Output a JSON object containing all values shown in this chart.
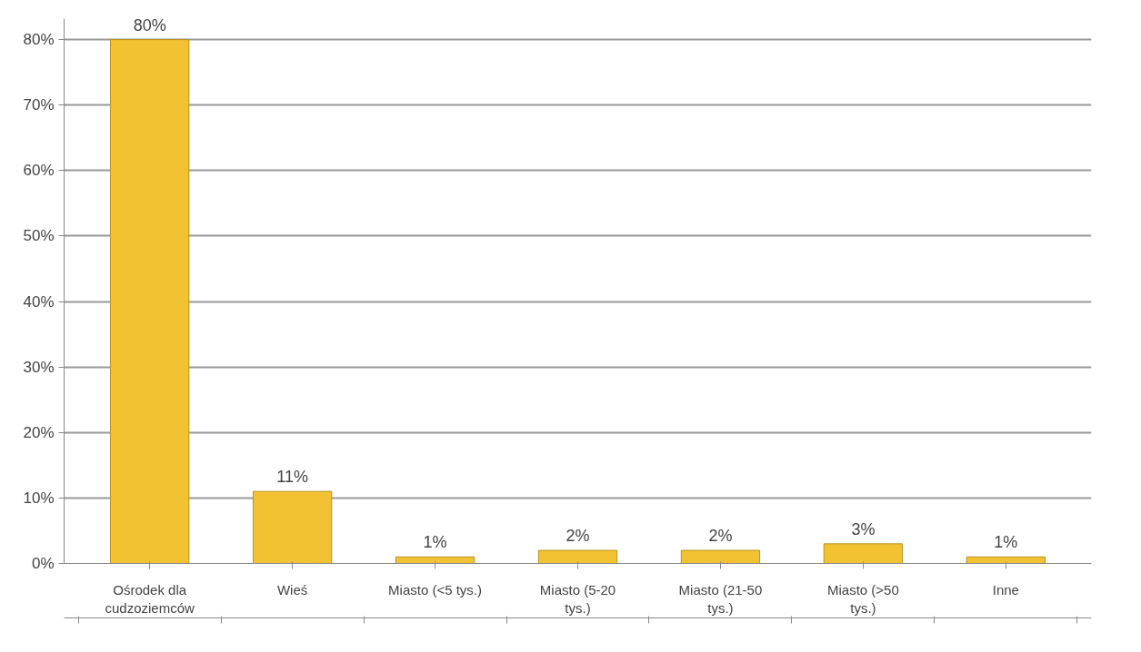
{
  "chart_data": {
    "type": "bar",
    "categories": [
      "Ośrodek dla cudzoziemców",
      "Wieś",
      "Miasto (<5 tys.)",
      "Miasto (5-20 tys.)",
      "Miasto (21-50 tys.)",
      "Miasto (>50 tys.)",
      "Inne"
    ],
    "values": [
      80,
      11,
      1,
      2,
      2,
      3,
      1
    ],
    "value_labels": [
      "80%",
      "11%",
      "1%",
      "2%",
      "2%",
      "3%",
      "1%"
    ],
    "color": "#f2c233",
    "ylim": [
      0,
      80
    ],
    "yticks": [
      {
        "value": 0,
        "label": "0%"
      },
      {
        "value": 10,
        "label": "10%"
      },
      {
        "value": 20,
        "label": "20%"
      },
      {
        "value": 30,
        "label": "30%"
      },
      {
        "value": 40,
        "label": "40%"
      },
      {
        "value": 50,
        "label": "50%"
      },
      {
        "value": 60,
        "label": "60%"
      },
      {
        "value": 70,
        "label": "70%"
      },
      {
        "value": 80,
        "label": "80%"
      }
    ],
    "grid": "y"
  }
}
